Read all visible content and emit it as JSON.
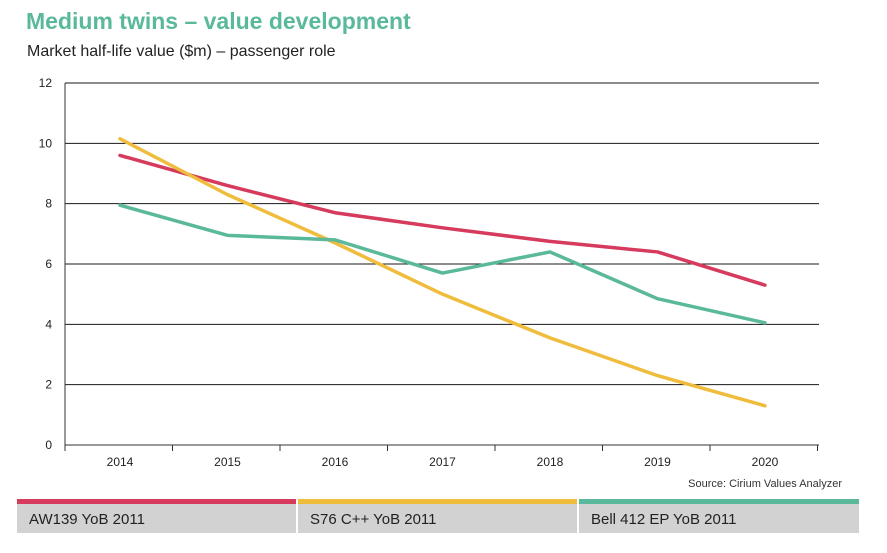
{
  "header": {
    "title": "Medium twins – value development",
    "subtitle": "Market half-life value ($m) – passenger role"
  },
  "source": "Source: Cirium Values Analyzer",
  "legend": [
    {
      "label": "AW139 YoB 2011",
      "color": "#d63a5c"
    },
    {
      "label": "S76 C++ YoB 2011",
      "color": "#f0bc3c"
    },
    {
      "label": "Bell 412 EP YoB 2011",
      "color": "#5ab89b"
    }
  ],
  "chart_data": {
    "type": "line",
    "title": "Medium twins – value development",
    "subtitle": "Market half-life value ($m) – passenger role",
    "xlabel": "",
    "ylabel": "",
    "x": [
      "2014",
      "2015",
      "2016",
      "2017",
      "2018",
      "2019",
      "2020"
    ],
    "ylim": [
      0,
      12
    ],
    "yticks": [
      0,
      2,
      4,
      6,
      8,
      10,
      12
    ],
    "grid": "horizontal",
    "legend_position": "bottom",
    "series": [
      {
        "name": "AW139 YoB 2011",
        "color": "#d63a5c",
        "values": [
          9.6,
          8.6,
          7.7,
          7.2,
          6.75,
          6.4,
          5.3
        ]
      },
      {
        "name": "S76 C++ YoB 2011",
        "color": "#f0bc3c",
        "values": [
          10.15,
          8.3,
          6.7,
          5.0,
          3.55,
          2.3,
          1.3
        ]
      },
      {
        "name": "Bell 412 EP YoB 2011",
        "color": "#5ab89b",
        "values": [
          7.95,
          6.95,
          6.8,
          5.7,
          6.4,
          4.85,
          4.05
        ]
      }
    ]
  }
}
